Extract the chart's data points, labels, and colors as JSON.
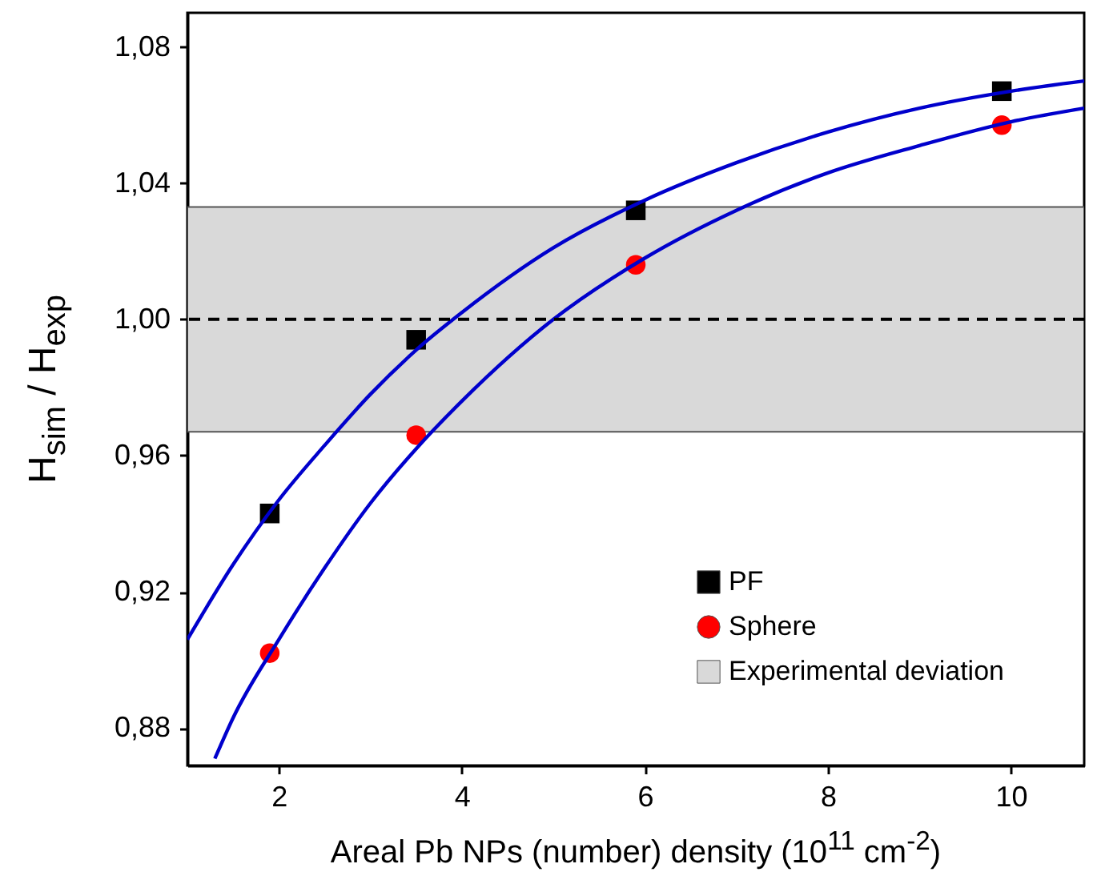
{
  "chart_data": {
    "type": "scatter",
    "xlabel": "Areal Pb NPs (number) density (10$^{11}$ cm$^{-2}$)",
    "ylabel": "H$_{sim}$ / H$_{exp}$",
    "xlim": [
      1,
      10.8
    ],
    "xticks": [
      2,
      4,
      6,
      8,
      10
    ],
    "ylim": [
      0.869,
      1.09
    ],
    "yticks": [
      {
        "value": 0.88,
        "label": "0,88"
      },
      {
        "value": 0.92,
        "label": "0,92"
      },
      {
        "value": 0.96,
        "label": "0,96"
      },
      {
        "value": 1.0,
        "label": "1,00"
      },
      {
        "value": 1.04,
        "label": "1,04"
      },
      {
        "value": 1.08,
        "label": "1,08"
      }
    ],
    "grid": false,
    "legend": "bottom right",
    "series": [
      {
        "name": "PF",
        "type": "scatter",
        "marker": "square",
        "color": "#000000",
        "x": [
          1.9,
          3.5,
          5.9,
          9.9
        ],
        "values": [
          0.943,
          0.994,
          1.032,
          1.067
        ]
      },
      {
        "name": "Sphere",
        "type": "scatter",
        "marker": "circle",
        "color": "#ff0000",
        "x": [
          1.9,
          3.5,
          5.9,
          9.9
        ],
        "values": [
          0.902,
          0.966,
          1.016,
          1.057
        ]
      },
      {
        "type": "line",
        "color": "#0000cc",
        "x": [
          1,
          1.5,
          2,
          2.5,
          3,
          3.5,
          4,
          5,
          6,
          7,
          8,
          9,
          10,
          10.8
        ],
        "values": [
          0.906,
          0.928,
          0.947,
          0.963,
          0.978,
          0.991,
          1.002,
          1.021,
          1.035,
          1.046,
          1.055,
          1.062,
          1.067,
          1.07
        ]
      },
      {
        "type": "line",
        "color": "#0000cc",
        "x": [
          1.3,
          1.5,
          2,
          2.5,
          3,
          3.5,
          4,
          5,
          6,
          7,
          8,
          9,
          10,
          10.8
        ],
        "values": [
          0.871,
          0.883,
          0.906,
          0.927,
          0.946,
          0.962,
          0.976,
          1.0,
          1.018,
          1.032,
          1.043,
          1.051,
          1.058,
          1.062
        ]
      }
    ],
    "ref_lines": [
      {
        "axis": "y",
        "value": 1.0,
        "color": "#000000",
        "line_style": "dashed"
      }
    ],
    "bands": [
      {
        "axis": "y",
        "from": 0.967,
        "to": 1.033,
        "label": "Experimental deviation",
        "color": "#d9d9d9"
      }
    ]
  }
}
